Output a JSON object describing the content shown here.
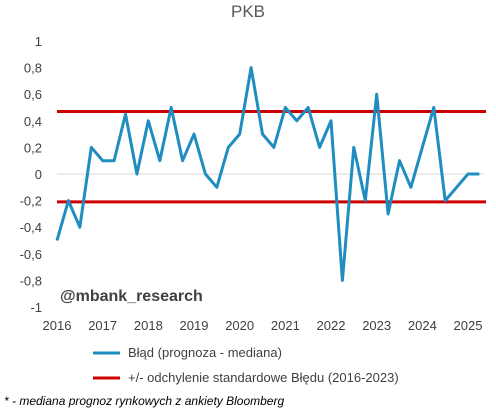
{
  "chart_data": {
    "type": "line",
    "title": "PKB",
    "xlabel": "",
    "ylabel": "",
    "x_ticks": [
      "2016",
      "2017",
      "2018",
      "2019",
      "2020",
      "2021",
      "2022",
      "2023",
      "2024",
      "2025"
    ],
    "y_ticks": [
      "1",
      "0,8",
      "0,6",
      "0,4",
      "0,2",
      "0",
      "-0,2",
      "-0,4",
      "-0,6",
      "-0,8",
      "-1"
    ],
    "xlim": [
      2016.0,
      2025.35
    ],
    "ylim": [
      -1,
      1
    ],
    "grid": false,
    "legend_position": "bottom",
    "series": [
      {
        "name": "Błąd (prognoza - mediana)",
        "color": "#1f8dbf",
        "x": [
          2016.0,
          2016.25,
          2016.5,
          2016.75,
          2017.0,
          2017.25,
          2017.5,
          2017.75,
          2018.0,
          2018.25,
          2018.5,
          2018.75,
          2019.0,
          2019.25,
          2019.5,
          2019.75,
          2020.0,
          2020.25,
          2020.5,
          2020.75,
          2021.0,
          2021.25,
          2021.5,
          2021.75,
          2022.0,
          2022.25,
          2022.5,
          2022.75,
          2023.0,
          2023.25,
          2023.5,
          2023.75,
          2024.0,
          2024.25,
          2024.5,
          2024.75,
          2025.0,
          2025.25
        ],
        "values": [
          -0.5,
          -0.2,
          -0.4,
          0.2,
          0.1,
          0.1,
          0.45,
          0.0,
          0.4,
          0.1,
          0.5,
          0.1,
          0.3,
          0.0,
          -0.1,
          0.2,
          0.3,
          0.8,
          0.3,
          0.2,
          0.5,
          0.4,
          0.5,
          0.2,
          0.4,
          -0.8,
          0.2,
          -0.2,
          0.6,
          -0.3,
          0.1,
          -0.1,
          0.2,
          0.5,
          -0.2,
          -0.1,
          0.0,
          0.0
        ]
      },
      {
        "name": "+/- odchylenie standardowe Błędu (2016-2023)",
        "color": "#cc0000",
        "bands": [
          0.47,
          -0.21
        ]
      }
    ],
    "annotations": [
      "@mbank_research"
    ]
  },
  "footnote": "* - mediana prognoz rynkowych z ankiety Bloomberg"
}
